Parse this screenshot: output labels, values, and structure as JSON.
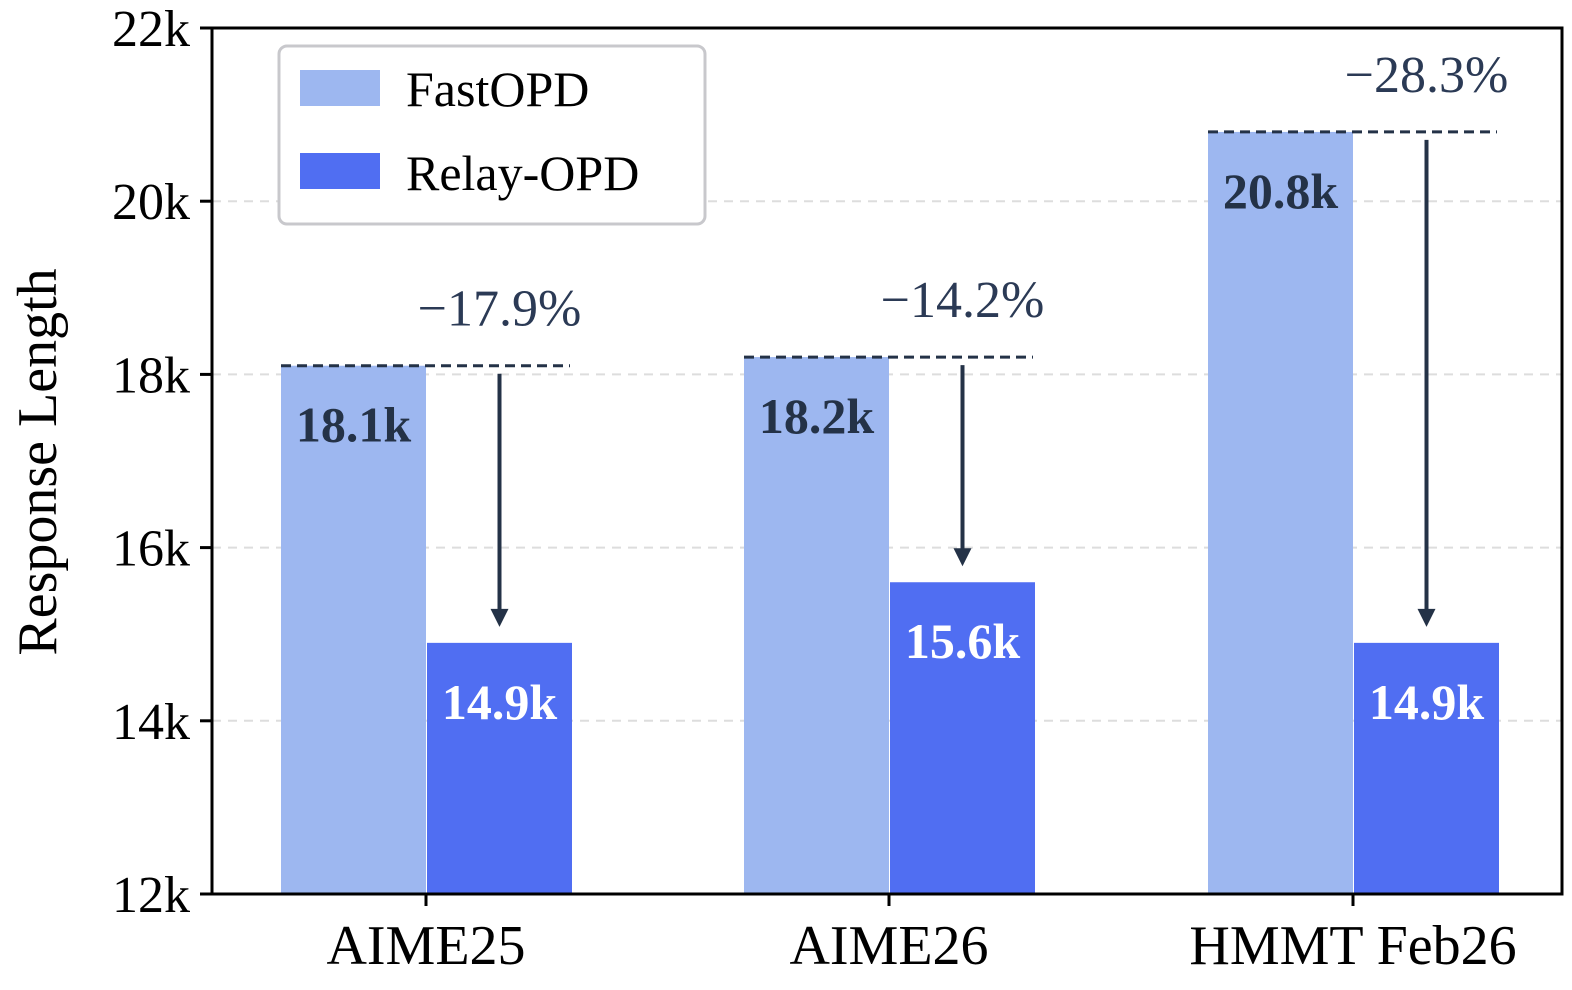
{
  "chart_data": {
    "type": "bar",
    "ylabel": "Response Length",
    "ylim": [
      12000,
      22000
    ],
    "yticks": [
      12000,
      14000,
      16000,
      18000,
      20000,
      22000
    ],
    "ytick_labels": [
      "12k",
      "14k",
      "16k",
      "18k",
      "20k",
      "22k"
    ],
    "categories": [
      "AIME25",
      "AIME26",
      "HMMT Feb26"
    ],
    "series": [
      {
        "name": "FastOPD",
        "values": [
          18100,
          18200,
          20800
        ],
        "labels": [
          "18.1k",
          "18.2k",
          "20.8k"
        ],
        "color": "#9db7f0"
      },
      {
        "name": "Relay-OPD",
        "values": [
          14900,
          15600,
          14900
        ],
        "labels": [
          "14.9k",
          "15.6k",
          "14.9k"
        ],
        "color": "#506ef2"
      }
    ],
    "reductions": [
      "−17.9%",
      "−14.2%",
      "−28.3%"
    ],
    "grid": "y-dashed",
    "legend": "top-left",
    "colors": {
      "annotation": "#243247",
      "grid": "#dddddd"
    }
  }
}
